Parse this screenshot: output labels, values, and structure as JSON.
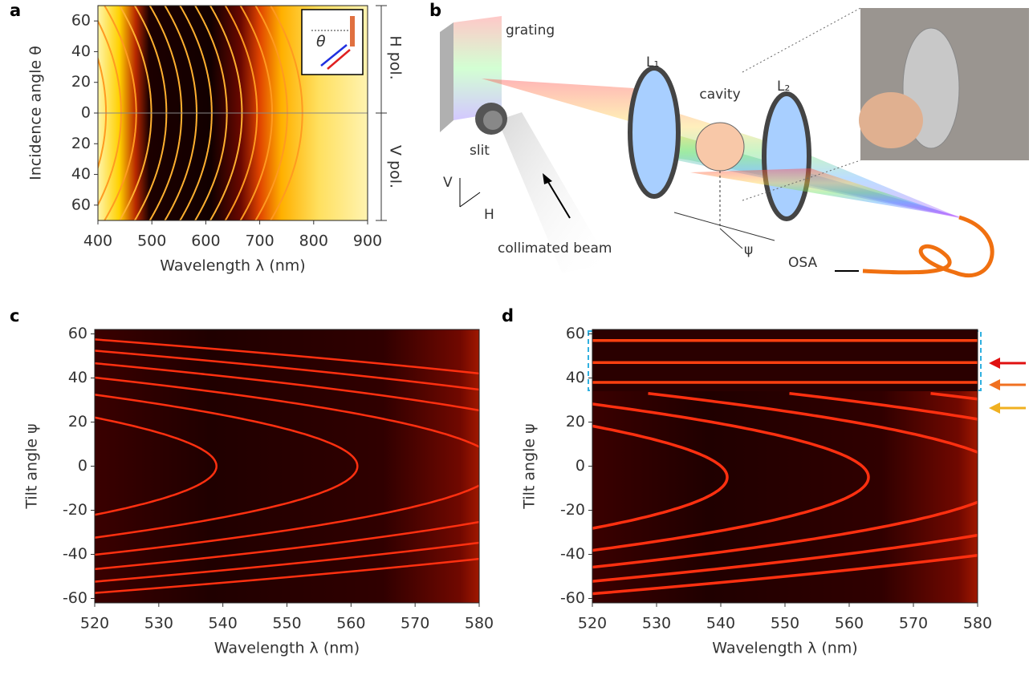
{
  "chart_data": [
    {
      "type": "heatmap",
      "panel": "a",
      "xlabel": "Wavelength λ (nm)",
      "ylabel": "Incidence angle θ",
      "xlim": [
        400,
        900
      ],
      "xticks": [
        400,
        500,
        600,
        700,
        800,
        900
      ],
      "ylim": [
        -70,
        70
      ],
      "yticks": [
        60,
        40,
        20,
        0,
        {
          "value": -20,
          "label": "20"
        },
        {
          "value": -40,
          "label": "40"
        },
        {
          "value": -60,
          "label": "60"
        }
      ],
      "annotations": [
        "H pol.",
        "V pol.",
        "θ"
      ]
    },
    {
      "type": "heatmap",
      "panel": "c",
      "xlabel": "Wavelength λ (nm)",
      "ylabel": "Tilt angle ψ",
      "xlim": [
        520,
        580
      ],
      "xticks": [
        520,
        530,
        540,
        550,
        560,
        570,
        580
      ],
      "ylim": [
        -62,
        62
      ],
      "yticks": [
        -60,
        -40,
        -20,
        0,
        20,
        40,
        60
      ]
    },
    {
      "type": "heatmap",
      "panel": "d",
      "xlabel": "Wavelength λ (nm)",
      "ylabel": "Tilt angle ψ",
      "xlim": [
        520,
        580
      ],
      "xticks": [
        520,
        530,
        540,
        550,
        560,
        570,
        580
      ],
      "ylim": [
        -62,
        62
      ],
      "yticks": [
        -60,
        -40,
        -20,
        0,
        20,
        40,
        60
      ]
    }
  ],
  "diagram": {
    "panel": "b",
    "labels": [
      "grating",
      "slit",
      "L₁",
      "cavity",
      "L₂",
      "V",
      "H",
      "collimated beam",
      "ψ",
      "OSA"
    ]
  }
}
